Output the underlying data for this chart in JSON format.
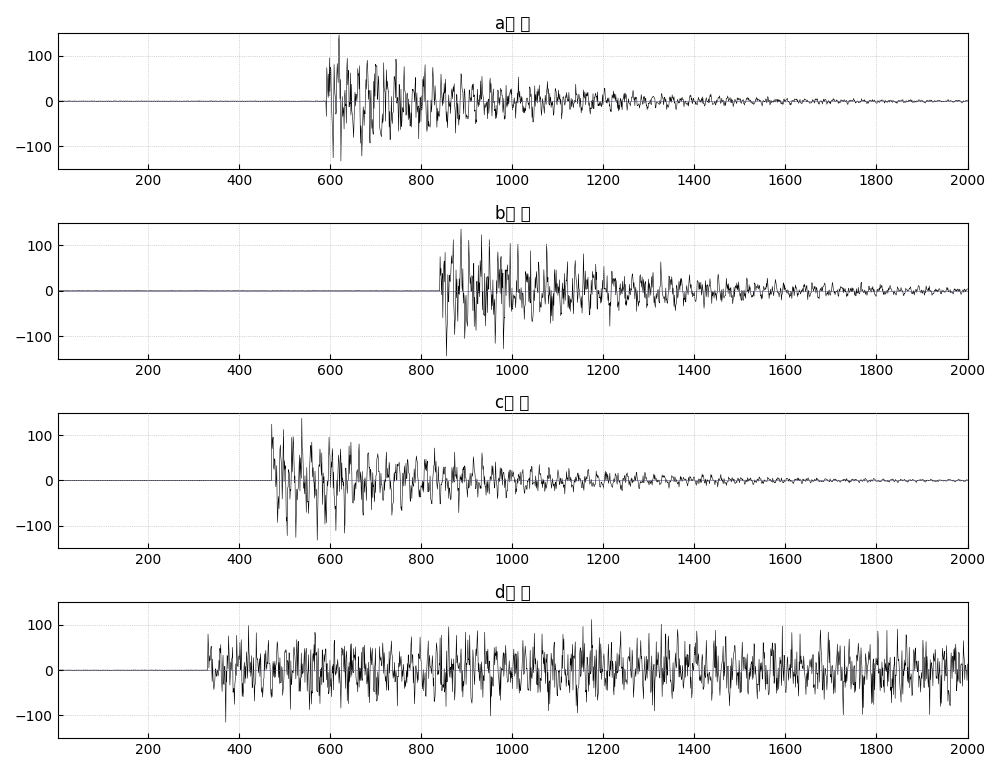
{
  "titles": [
    "a信 号",
    "b信 号",
    "c信 号",
    "d信 号"
  ],
  "xlim": [
    1,
    2000
  ],
  "ylim": [
    -150,
    150
  ],
  "yticks": [
    -100,
    0,
    100
  ],
  "xticks": [
    200,
    400,
    600,
    800,
    1000,
    1200,
    1400,
    1600,
    1800,
    2000
  ],
  "signal_starts": [
    590,
    840,
    470,
    330
  ],
  "signal_peaks": [
    130,
    120,
    120,
    55
  ],
  "signal_decays": [
    350,
    400,
    380,
    99999
  ],
  "line_color": "#000000",
  "bg_color": "#ffffff",
  "grid_color": "#b0b0b0",
  "hline_color": "#8888bb",
  "title_fontsize": 12,
  "tick_fontsize": 10,
  "linewidth": 0.4
}
